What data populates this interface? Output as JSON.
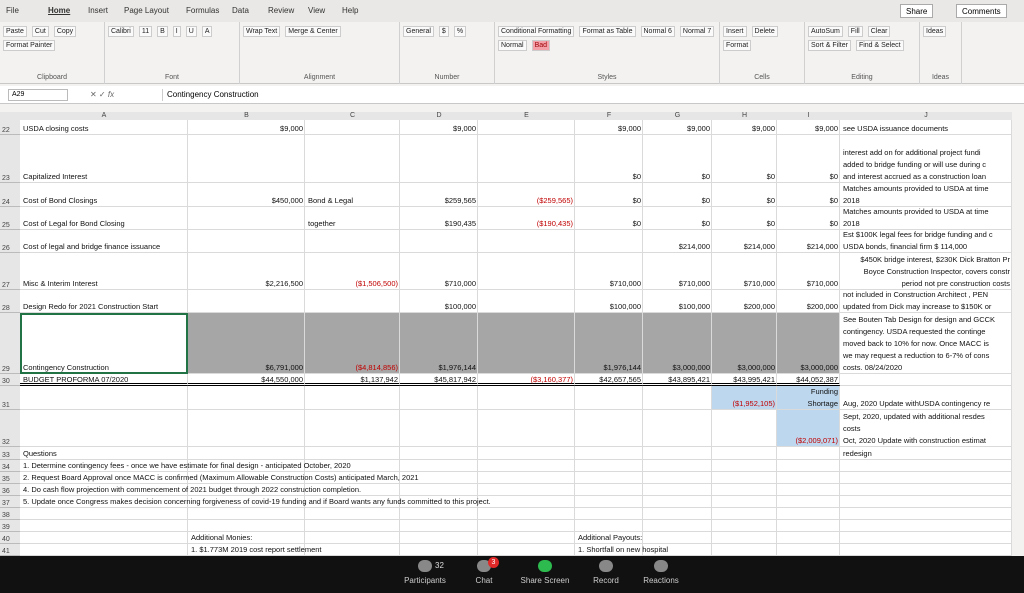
{
  "ribbon": {
    "tabs": [
      "File",
      "Home",
      "Insert",
      "Page Layout",
      "Formulas",
      "Data",
      "Review",
      "View",
      "Help"
    ],
    "actions": [
      "Share",
      "Comments"
    ],
    "groups": [
      {
        "label": "Clipboard",
        "items": [
          "Paste",
          "Cut",
          "Copy",
          "Format Painter"
        ]
      },
      {
        "label": "Font",
        "items": [
          "Calibri",
          "11",
          "B",
          "I",
          "U",
          "A"
        ]
      },
      {
        "label": "Alignment",
        "items": [
          "Wrap Text",
          "Merge & Center"
        ]
      },
      {
        "label": "Number",
        "items": [
          "General",
          "$",
          "%"
        ]
      },
      {
        "label": "Styles",
        "items": [
          "Conditional Formatting",
          "Format as Table",
          "Normal 6",
          "Normal 7",
          "Normal",
          "Bad"
        ]
      },
      {
        "label": "Cells",
        "items": [
          "Insert",
          "Delete",
          "Format"
        ]
      },
      {
        "label": "Editing",
        "items": [
          "AutoSum",
          "Fill",
          "Clear",
          "Sort & Filter",
          "Find & Select"
        ]
      },
      {
        "label": "Ideas",
        "items": [
          "Ideas"
        ]
      }
    ]
  },
  "formula_bar": {
    "name_box": "A29",
    "content": "Contingency Construction"
  },
  "sheet": {
    "columns": [
      "A",
      "B",
      "C",
      "D",
      "E",
      "F",
      "G",
      "H",
      "I",
      "J"
    ],
    "rows": [
      {
        "num": 22,
        "cells": [
          "USDA closing costs",
          "$9,000",
          null,
          "$9,000",
          null,
          "$9,000",
          "$9,000",
          "$9,000",
          "$9,000",
          "see USDA issuance documents"
        ]
      },
      {
        "num": 23,
        "cells": [
          "Capitalized Interest",
          null,
          null,
          null,
          null,
          "$0",
          "$0",
          "$0",
          "$0",
          "interest add on for additional project fundi\nadded to bridge funding or will use during c\nand interest accrued as a construction loan"
        ]
      },
      {
        "num": 24,
        "cells": [
          "Cost of Bond Closings",
          "$450,000",
          "Bond & Legal",
          "$259,565",
          "($259,565)",
          "$0",
          "$0",
          "$0",
          "$0",
          "Matches amounts provided to USDA at time\n2018"
        ]
      },
      {
        "num": 25,
        "cells": [
          "Cost of Legal for Bond Closing",
          null,
          "together",
          "$190,435",
          "($190,435)",
          "$0",
          "$0",
          "$0",
          "$0",
          "Matches amounts provided to USDA at time\n2018"
        ]
      },
      {
        "num": 26,
        "cells": [
          "Cost of legal and bridge finance issuance",
          null,
          null,
          null,
          null,
          null,
          "$214,000",
          "$214,000",
          "$214,000",
          "Est $100K legal fees for bridge funding and c\nUSDA bonds, financial firm $ 114,000"
        ]
      },
      {
        "num": 27,
        "cells": [
          "Misc & Interim Interest",
          "$2,216,500",
          "($1,506,500)",
          "$710,000",
          null,
          "$710,000",
          "$710,000",
          "$710,000",
          "$710,000",
          "$450K bridge interest, $230K Dick Bratton Pr\nBoyce Construction Inspector, covers constr\nperiod not pre construction costs"
        ]
      },
      {
        "num": 28,
        "cells": [
          "Design Redo for 2021 Construction Start",
          null,
          null,
          "$100,000",
          null,
          "$100,000",
          "$100,000",
          "$200,000",
          "$200,000",
          "not included in Construction Architect , PEN\nupdated from Dick may increase to $150K or"
        ]
      },
      {
        "num": 29,
        "cells": [
          "Contingency Construction",
          "$6,791,000",
          "($4,814,856)",
          "$1,976,144",
          null,
          "$1,976,144",
          "$3,000,000",
          "$3,000,000",
          "$3,000,000",
          "See Bouten Tab Design for design and GCCK\ncontingency. USDA requested the continge\nmoved back to 10% for now. Once MACC is\nwe may request a reduction to 6-7% of cons\ncosts. 08/24/2020"
        ]
      },
      {
        "num": 30,
        "cells": [
          "BUDGET PROFORMA 07/2020",
          "$44,550,000",
          "$1,137,942",
          "$45,817,942",
          "($3,160,377)",
          "$42,657,565",
          "$43,895,421",
          "$43,995,421",
          "$44,052,387",
          null
        ]
      },
      {
        "num": 31,
        "cells": [
          null,
          null,
          null,
          null,
          null,
          null,
          null,
          "($1,952,105)",
          "Funding\nShortage",
          "Aug, 2020 Update withUSDA contingency re"
        ]
      },
      {
        "num": 32,
        "cells": [
          null,
          null,
          null,
          null,
          null,
          null,
          null,
          null,
          "($2,009,071)",
          "Sept, 2020, updated with additional resdes\ncosts\nOct, 2020 Update with construction estimat"
        ]
      },
      {
        "num": 33,
        "cells": [
          "Questions",
          null,
          null,
          null,
          null,
          null,
          null,
          null,
          null,
          "redesign"
        ]
      },
      {
        "num": 34,
        "cells": [
          "1. Determine contingency fees - once we have estimate for final design - anticipated October, 2020",
          null,
          null,
          null,
          null,
          null,
          null,
          null,
          null,
          null
        ]
      },
      {
        "num": 35,
        "cells": [
          "2. Request Board Approval once MACC is confirmed (Maximum Allowable Construction Costs) anticipated March, 2021",
          null,
          null,
          null,
          null,
          null,
          null,
          null,
          null,
          null
        ]
      },
      {
        "num": 36,
        "cells": [
          "4. Do cash flow projection with commencement of 2021 budget through 2022 construction completion.",
          null,
          null,
          null,
          null,
          null,
          null,
          null,
          null,
          null
        ]
      },
      {
        "num": 37,
        "cells": [
          "5. Update once Congress makes decision concerning forgiveness of covid-19 funding and if Board wants any funds committed to this project.",
          null,
          null,
          null,
          null,
          null,
          null,
          null,
          null,
          null
        ]
      },
      {
        "num": 38,
        "cells": [
          null,
          null,
          null,
          null,
          null,
          null,
          null,
          null,
          null,
          null
        ]
      },
      {
        "num": 39,
        "cells": [
          null,
          null,
          null,
          null,
          null,
          null,
          null,
          null,
          null,
          null
        ]
      },
      {
        "num": 40,
        "cells": [
          null,
          "Additional Monies:",
          null,
          null,
          null,
          "Additional Payouts:",
          null,
          null,
          null,
          null
        ]
      },
      {
        "num": 41,
        "cells": [
          null,
          "1. $1.773M 2019 cost report settlement",
          null,
          null,
          null,
          "1. Shortfall on new hospital",
          null,
          null,
          null,
          null
        ]
      }
    ]
  },
  "meeting_toolbar": {
    "participants_count": 32,
    "chat_badge": 3,
    "buttons": [
      "Participants",
      "Chat",
      "Share Screen",
      "Record",
      "Reactions"
    ]
  }
}
